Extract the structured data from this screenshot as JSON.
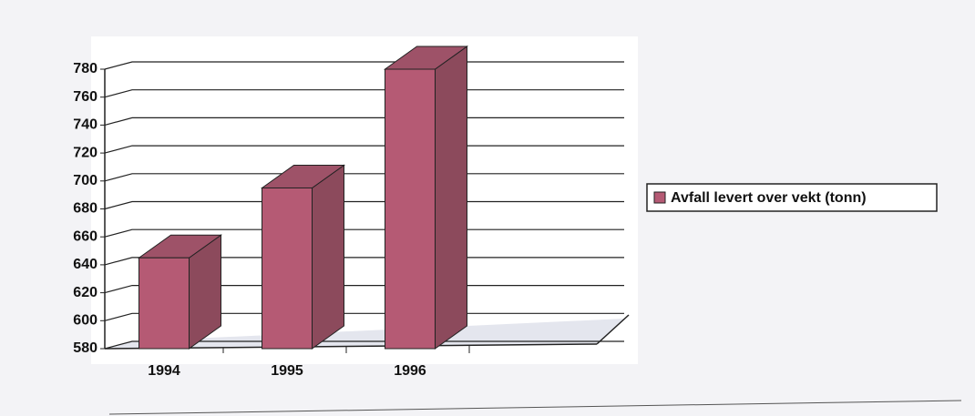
{
  "chart_data": {
    "type": "bar3d",
    "categories": [
      "1994",
      "1995",
      "1996"
    ],
    "series": [
      {
        "name": "Avfall levert over vekt (tonn)",
        "color": "#b55a74",
        "values": [
          645,
          695,
          780
        ]
      }
    ],
    "ylim": [
      580,
      780
    ],
    "yticks": [
      580,
      600,
      620,
      640,
      660,
      680,
      700,
      720,
      740,
      760,
      780
    ],
    "grid": true,
    "legend": "right"
  }
}
